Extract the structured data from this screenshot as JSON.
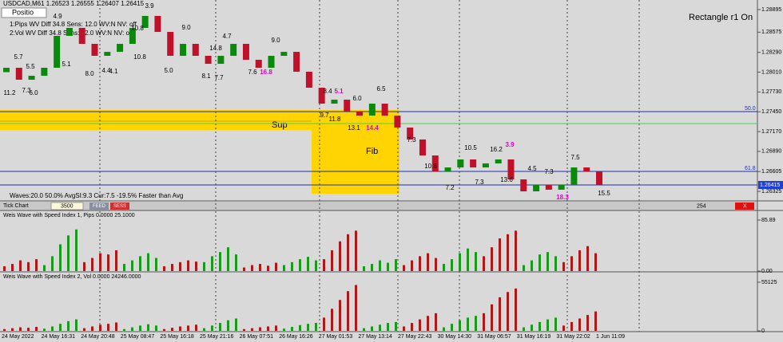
{
  "window": {
    "title": "USDCAD,M61 1.26523 1.26555 1.26407 1.26415",
    "button": "Positio",
    "info_lines": [
      "1:Pips WV Diff 34.8 Sens: 12.0 WV:N NV: off",
      "2:Vol  WV Diff 34.8 Sens: 12.0 WV:N NV: off"
    ],
    "rectangle_status": "Rectangle r1 On",
    "waves_info": "Waves:20.0 50.0% AvgSI:9.3 Cur:7.5 -19.5% Faster than Avg",
    "toolbar": {
      "chart_type": "Tick Chart",
      "ticks": "3500",
      "feed": "FEED",
      "sess": "SESS",
      "count": "254",
      "close": "X"
    }
  },
  "chart_data": [
    {
      "type": "candlestick",
      "up_color": "#0a8a0a",
      "down_color": "#c0102a",
      "grid": true,
      "open": [
        1.2801,
        1.28072,
        1.27903,
        1.27959,
        1.28072,
        1.28523,
        1.28636,
        1.2841,
        1.28241,
        1.28297,
        1.2841,
        1.28636,
        1.28805,
        1.28579,
        1.28241,
        1.2841,
        1.28241,
        1.28128,
        1.28241,
        1.2841,
        1.28185,
        1.28072,
        1.28241,
        1.28297,
        1.28016,
        1.2779,
        1.27565,
        1.27621,
        1.27452,
        1.27396,
        1.27565,
        1.27396,
        1.27227,
        1.27058,
        1.26832,
        1.26607,
        1.26663,
        1.26776,
        1.26663,
        1.2672,
        1.26776,
        1.26494,
        1.26325,
        1.26416,
        1.26348,
        1.26416,
        1.26663,
        1.26607
      ],
      "close": [
        1.28072,
        1.27903,
        1.27959,
        1.28072,
        1.28523,
        1.28636,
        1.2841,
        1.28241,
        1.28297,
        1.2841,
        1.28636,
        1.28805,
        1.28579,
        1.28241,
        1.2841,
        1.28241,
        1.28128,
        1.28241,
        1.2841,
        1.28185,
        1.28072,
        1.28241,
        1.28297,
        1.28016,
        1.2779,
        1.27565,
        1.27621,
        1.27452,
        1.27396,
        1.27565,
        1.27396,
        1.27227,
        1.27058,
        1.26832,
        1.26607,
        1.26663,
        1.26776,
        1.26663,
        1.2672,
        1.26776,
        1.26494,
        1.26325,
        1.26416,
        1.26348,
        1.26416,
        1.26663,
        1.26607,
        1.26416
      ],
      "ylim": [
        1.2619,
        1.2903
      ],
      "yticks": [
        1.28895,
        1.28575,
        {
          "value": 1.2829,
          "label": "1.28290"
        },
        {
          "value": 1.2801,
          "label": "1.28010"
        },
        {
          "value": 1.2773,
          "label": "1.27730"
        },
        {
          "value": 1.2745,
          "label": "1.27450"
        },
        {
          "value": 1.2717,
          "label": "1.27170"
        },
        {
          "value": 1.2689,
          "label": "1.26890"
        },
        1.26605,
        1.26325
      ],
      "levels": [
        {
          "value": 1.27452,
          "label": "50.0"
        },
        {
          "value": 1.26607,
          "label": "61.8"
        }
      ],
      "support_line": 1.27283,
      "current_price": {
        "value": 1.26415,
        "label": "1.26415"
      },
      "zones": [
        "Sup",
        "Fib"
      ],
      "annotations": [
        "11.2",
        "7.3",
        "6.0",
        "5.5",
        "5.7",
        "4.9",
        "5.1",
        "8.0",
        "4.4",
        "4.1",
        "3.9",
        "10.8",
        "10.8",
        "5.0",
        "9.0",
        "8.1",
        "7.7",
        "4.7",
        "7.6",
        "14.8",
        "9.0",
        "16.8",
        "8.4",
        "5.1",
        "6.0",
        "6.5",
        "9.7",
        "11.8",
        "13.1",
        "14.4",
        "7.3",
        "10.8",
        "7.2",
        "10.5",
        "7.3",
        "16.2",
        "3.9",
        "13.6",
        "4.5",
        "7.3",
        "7.5",
        "15.5",
        "18.3"
      ],
      "x_labels": [
        "24 May 2022",
        "24 May 16:31",
        "24 May 20:48",
        "25 May 08:47",
        "25 May 16:18",
        "25 May 21:16",
        "26 May 07:51",
        "26 May 16:26",
        "27 May 01:53",
        "27 May 13:14",
        "27 May 22:43",
        "30 May 14:30",
        "31 May 06:57",
        "31 May 16:19",
        "31 May 22:02",
        "1 Jun 11:09"
      ]
    },
    {
      "type": "bar",
      "title": "Weis Wave with Speed Index 1, Pips 0.0000 25.1000",
      "ylim": [
        0,
        85.89
      ],
      "yticks": [
        {
          "value": 0,
          "label": "0.00"
        },
        85.89
      ],
      "waves": [
        {
          "color": "#b01818",
          "values": [
            8,
            12,
            18,
            15,
            20
          ]
        },
        {
          "color": "#1a9a1a",
          "values": [
            10,
            25,
            45,
            60,
            70
          ]
        },
        {
          "color": "#b01818",
          "values": [
            15,
            22,
            30,
            28,
            35
          ]
        },
        {
          "color": "#1a9a1a",
          "values": [
            12,
            18,
            25,
            30,
            22
          ]
        },
        {
          "color": "#b01818",
          "values": [
            8,
            12,
            15,
            18,
            16
          ]
        },
        {
          "color": "#1a9a1a",
          "values": [
            15,
            25,
            32,
            40,
            28
          ]
        },
        {
          "color": "#b01818",
          "values": [
            6,
            10,
            12,
            9,
            14
          ]
        },
        {
          "color": "#1a9a1a",
          "values": [
            10,
            15,
            20,
            24,
            18
          ]
        },
        {
          "color": "#b01818",
          "values": [
            20,
            35,
            50,
            62,
            68
          ]
        },
        {
          "color": "#1a9a1a",
          "values": [
            8,
            12,
            18,
            14,
            20
          ]
        },
        {
          "color": "#b01818",
          "values": [
            10,
            18,
            25,
            30,
            22
          ]
        },
        {
          "color": "#1a9a1a",
          "values": [
            12,
            20,
            30,
            38,
            32
          ]
        },
        {
          "color": "#b01818",
          "values": [
            25,
            40,
            55,
            62,
            68
          ]
        },
        {
          "color": "#1a9a1a",
          "values": [
            10,
            18,
            28,
            32,
            25
          ]
        },
        {
          "color": "#b01818",
          "values": [
            15,
            25,
            35,
            42,
            30
          ]
        }
      ]
    },
    {
      "type": "bar",
      "title": "Weis Wave with Speed Index 2, Vol  0.0000 24246.0000",
      "ylim": [
        0,
        55125
      ],
      "yticks": [
        0,
        55125
      ],
      "waves": [
        {
          "color": "#b01818",
          "values": [
            2000,
            3000,
            4000,
            3500,
            4500
          ]
        },
        {
          "color": "#1a9a1a",
          "values": [
            2500,
            5000,
            8000,
            11000,
            13000
          ]
        },
        {
          "color": "#b01818",
          "values": [
            3000,
            5000,
            7000,
            8000,
            9500
          ]
        },
        {
          "color": "#1a9a1a",
          "values": [
            2000,
            4000,
            6000,
            7500,
            6000
          ]
        },
        {
          "color": "#b01818",
          "values": [
            2000,
            3500,
            5000,
            6000,
            7000
          ]
        },
        {
          "color": "#1a9a1a",
          "values": [
            3000,
            6000,
            9000,
            12000,
            14000
          ]
        },
        {
          "color": "#b01818",
          "values": [
            2000,
            3000,
            4000,
            5000,
            6000
          ]
        },
        {
          "color": "#1a9a1a",
          "values": [
            2500,
            4500,
            6500,
            8000,
            9000
          ]
        },
        {
          "color": "#b01818",
          "values": [
            15000,
            25000,
            35000,
            45000,
            52000
          ]
        },
        {
          "color": "#1a9a1a",
          "values": [
            3000,
            5000,
            7000,
            9000,
            10000
          ]
        },
        {
          "color": "#b01818",
          "values": [
            5000,
            9000,
            13000,
            17000,
            20000
          ]
        },
        {
          "color": "#1a9a1a",
          "values": [
            4000,
            8000,
            12000,
            15000,
            17000
          ]
        },
        {
          "color": "#b01818",
          "values": [
            20000,
            30000,
            38000,
            44000,
            48000
          ]
        },
        {
          "color": "#1a9a1a",
          "values": [
            4000,
            7000,
            10000,
            13000,
            15000
          ]
        },
        {
          "color": "#b01818",
          "values": [
            6000,
            10000,
            14000,
            18000,
            22000
          ]
        }
      ]
    }
  ]
}
